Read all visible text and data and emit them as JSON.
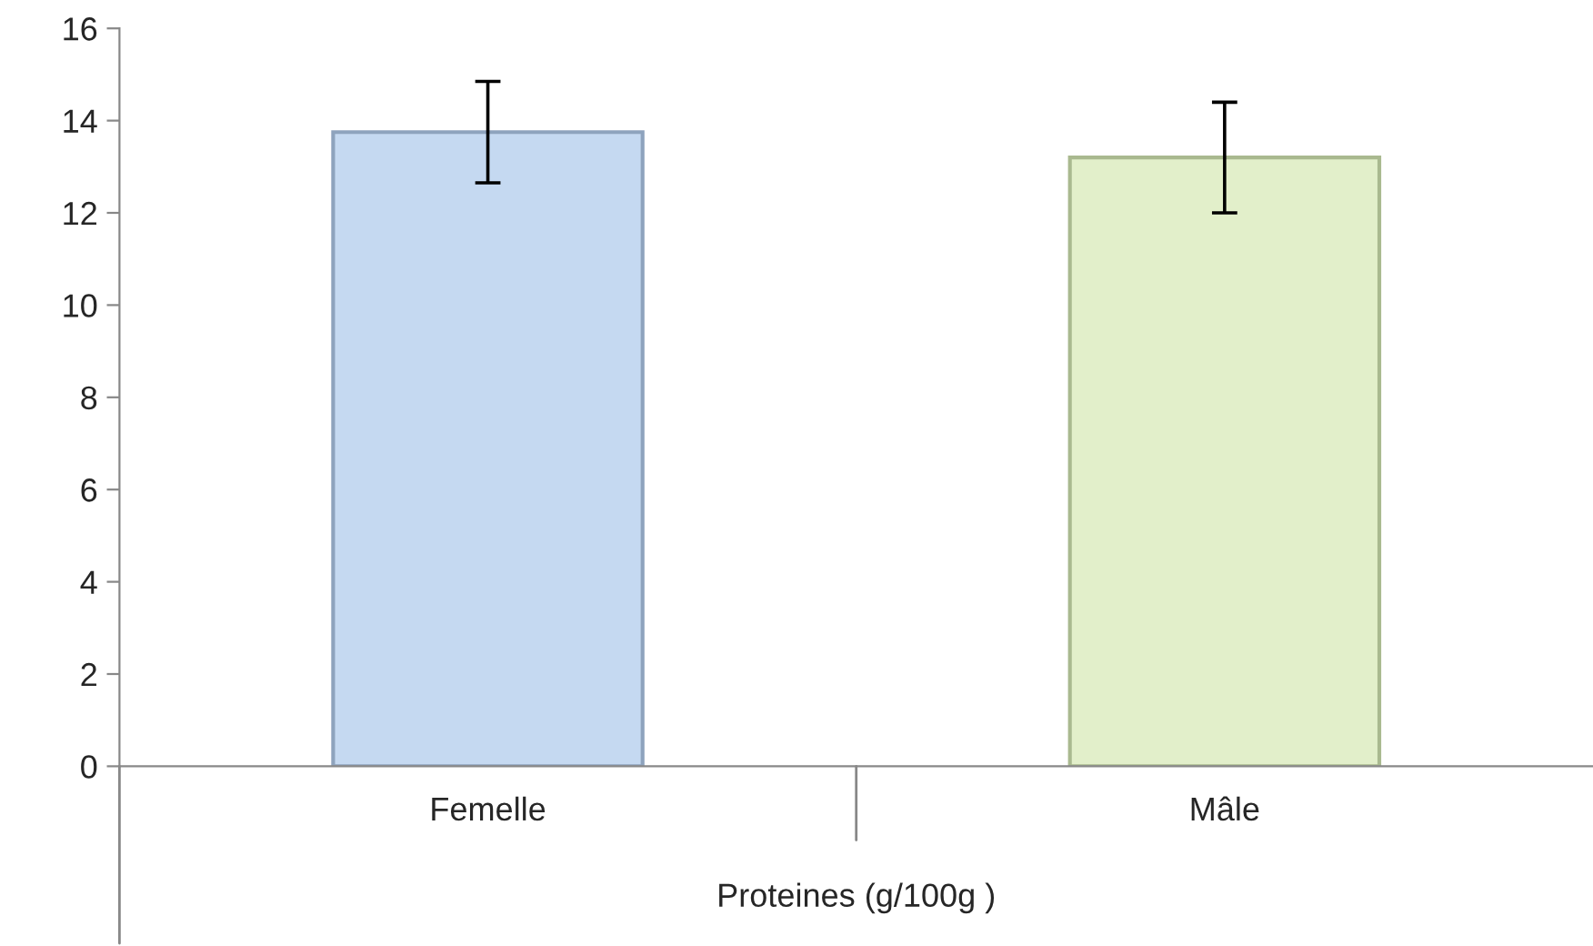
{
  "chart_data": {
    "type": "bar",
    "xlabel": "Proteines (g/100g )",
    "categories": [
      "Femelle",
      "Mâle"
    ],
    "values": [
      13.75,
      13.2
    ],
    "errors": [
      1.1,
      1.2
    ],
    "colors": [
      "#c5d9f1",
      "#e2efca"
    ],
    "ylim": [
      0,
      16
    ],
    "yticks": [
      0,
      2,
      4,
      6,
      8,
      10,
      12,
      14,
      16
    ],
    "grid": false,
    "legend": false
  }
}
